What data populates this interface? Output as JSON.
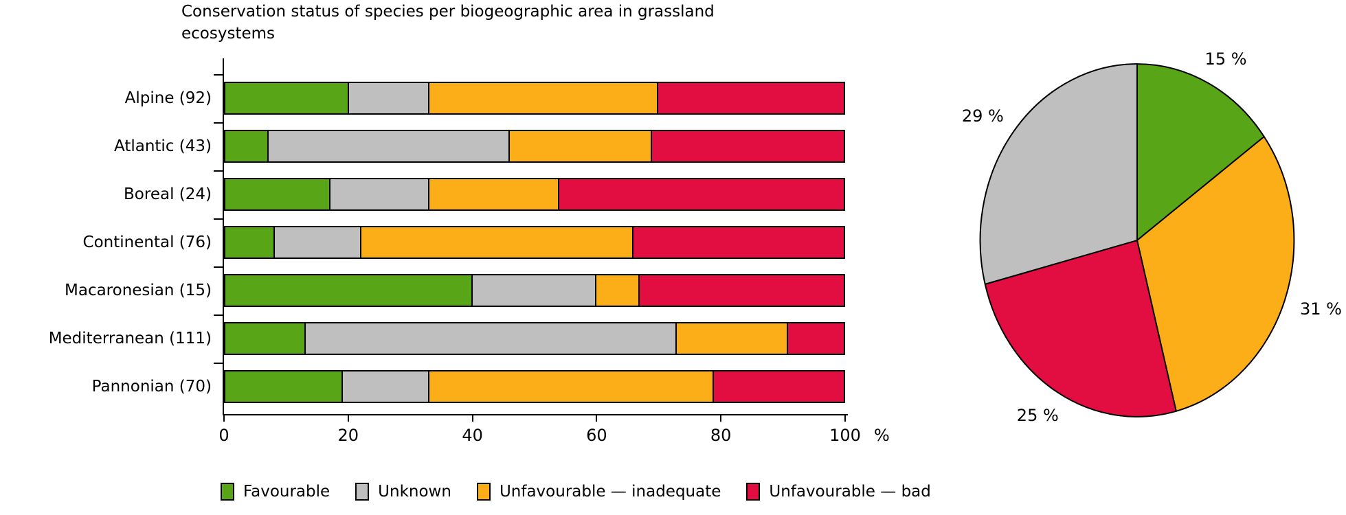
{
  "title": "Conservation status of species per biogeographic area in grassland ecosystems",
  "legend": {
    "items": [
      {
        "label": "Favourable",
        "color": "#58A618"
      },
      {
        "label": "Unknown",
        "color": "#BFBFBF"
      },
      {
        "label": "Unfavourable — inadequate",
        "color": "#FBAE17"
      },
      {
        "label": "Unfavourable — bad",
        "color": "#E20D40"
      }
    ]
  },
  "chart_data": [
    {
      "type": "bar",
      "orientation": "horizontal",
      "stacked": true,
      "title": "Conservation status of species per biogeographic area in grassland ecosystems",
      "categories": [
        "Alpine (92)",
        "Atlantic (43)",
        "Boreal (24)",
        "Continental (76)",
        "Macaronesian (15)",
        "Mediterranean (111)",
        "Pannonian (70)"
      ],
      "series": [
        {
          "name": "Favourable",
          "color": "#58A618",
          "values": [
            20,
            7,
            17,
            8,
            40,
            13,
            19
          ]
        },
        {
          "name": "Unknown",
          "color": "#BFBFBF",
          "values": [
            13,
            39,
            16,
            14,
            20,
            60,
            14
          ]
        },
        {
          "name": "Unfavourable — inadequate",
          "color": "#FBAE17",
          "values": [
            37,
            23,
            21,
            44,
            7,
            18,
            46
          ]
        },
        {
          "name": "Unfavourable — bad",
          "color": "#E20D40",
          "values": [
            30,
            31,
            46,
            34,
            33,
            9,
            21
          ]
        }
      ],
      "xlim": [
        0,
        100
      ],
      "x_ticks": [
        0,
        20,
        40,
        60,
        80,
        100
      ],
      "x_unit": "%",
      "grid": false,
      "legend_position": "bottom"
    },
    {
      "type": "pie",
      "start_angle": "12-oclock",
      "direction": "clockwise",
      "slices": [
        {
          "label": "Favourable",
          "value": 15,
          "display": "15 %",
          "color": "#58A618"
        },
        {
          "label": "Unfavourable — inadequate",
          "value": 31,
          "display": "31 %",
          "color": "#FBAE17"
        },
        {
          "label": "Unfavourable — bad",
          "value": 25,
          "display": "25 %",
          "color": "#E20D40"
        },
        {
          "label": "Unknown",
          "value": 29,
          "display": "29 %",
          "color": "#BFBFBF"
        }
      ]
    }
  ]
}
